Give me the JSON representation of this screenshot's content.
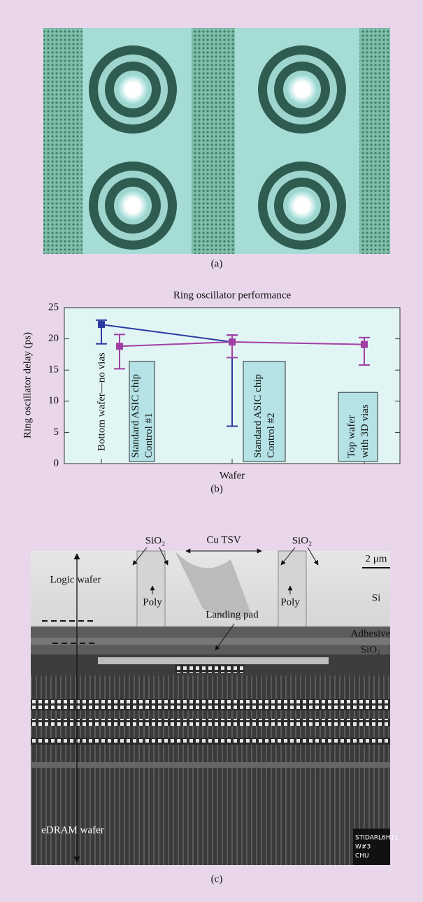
{
  "panels": {
    "a": {
      "caption": "(a)"
    },
    "b": {
      "caption": "(b)"
    },
    "c": {
      "caption": "(c)",
      "sio2_left": "SiO₂",
      "cu_tsv": "Cu TSV",
      "sio2_right": "SiO₂",
      "scale": "2 μm",
      "logic_wafer": "Logic wafer",
      "poly_left": "Poly",
      "poly_right": "Poly",
      "si": "Si",
      "landing_pad": "Landing pad",
      "adhesive": "Adhesive",
      "adhesive_sio2": "SiO₂",
      "edram_wafer": "eDRAM wafer",
      "stamp": [
        "STIDARL6H11",
        "W#3",
        "CHU"
      ]
    }
  },
  "chart_data": {
    "type": "errorbar",
    "title": "Ring oscillator performance",
    "x_label": "Wafer",
    "y_label": "Ring oscillator delay (ps)",
    "categories": [
      null,
      null,
      null
    ],
    "ylim": [
      0,
      25
    ],
    "yticks": [
      0,
      5,
      10,
      15,
      20,
      25
    ],
    "series": [
      {
        "color": "#2b3aa3",
        "values": [
          22.3,
          19.5,
          null
        ],
        "lower": [
          19.2,
          6,
          null
        ],
        "upper": [
          23,
          20.6,
          null
        ]
      },
      {
        "color": "#a23ea3",
        "values": [
          18.8,
          19.5,
          19.1
        ],
        "lower": [
          15.2,
          17,
          15.8
        ],
        "upper": [
          20.7,
          20.6,
          20.2
        ]
      }
    ],
    "annotations": [
      {
        "lines": [
          "Bottom wafer—no vias"
        ],
        "boxed": false
      },
      {
        "lines": [
          "Standard ASIC chip",
          "Control #1"
        ],
        "boxed": true
      },
      {
        "lines": [
          "Standard ASIC chip",
          "Control #2"
        ],
        "boxed": true
      },
      {
        "lines": [
          "Top wafer",
          "with 3D vias"
        ],
        "boxed": true
      }
    ]
  }
}
